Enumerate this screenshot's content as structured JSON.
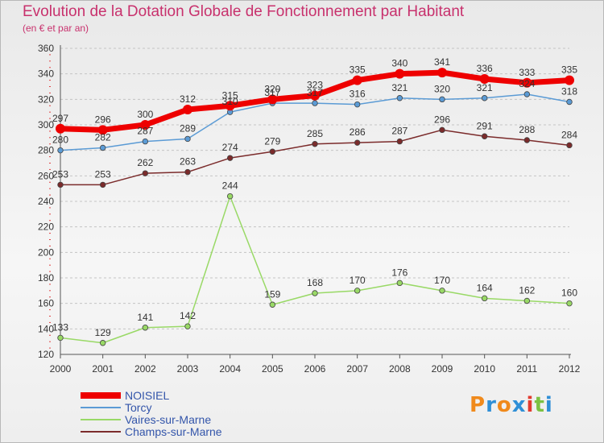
{
  "header": {
    "title": "Evolution de la Dotation Globale de Fonctionnement par Habitant",
    "subtitle": "(en € et par an)"
  },
  "brand": {
    "letters": [
      "P",
      "r",
      "o",
      "x",
      "i",
      "t",
      "i"
    ],
    "colors": [
      "#f08a1c",
      "#2f8fd6",
      "#f08a1c",
      "#2f8fd6",
      "#e23b2f",
      "#7cc142",
      "#2f8fd6"
    ]
  },
  "chart_data": {
    "type": "line",
    "title": "Evolution de la Dotation Globale de Fonctionnement par Habitant",
    "subtitle": "(en € et par an)",
    "x": [
      "2000",
      "2001",
      "2002",
      "2003",
      "2004",
      "2005",
      "2006",
      "2007",
      "2008",
      "2009",
      "2010",
      "2011",
      "2012"
    ],
    "ylim": [
      120,
      360
    ],
    "yticks": [
      120,
      140,
      160,
      180,
      200,
      220,
      240,
      260,
      280,
      300,
      320,
      340,
      360
    ],
    "grid": "horizontal dashed",
    "legend_position": "bottom-left",
    "series": [
      {
        "name": "NOISIEL",
        "color": "#ee0000",
        "values": [
          297,
          296,
          300,
          312,
          315,
          320,
          323,
          335,
          340,
          341,
          336,
          333,
          335
        ]
      },
      {
        "name": "Torcy",
        "color": "#5b9bd5",
        "values": [
          280,
          282,
          287,
          289,
          310,
          317,
          317,
          316,
          321,
          320,
          321,
          324,
          318
        ]
      },
      {
        "name": "Vaires-sur-Marne",
        "color": "#99d966",
        "values": [
          133,
          129,
          141,
          142,
          244,
          159,
          168,
          170,
          176,
          170,
          164,
          162,
          160
        ]
      },
      {
        "name": "Champs-sur-Marne",
        "color": "#7b2b2b",
        "values": [
          253,
          253,
          262,
          263,
          274,
          279,
          285,
          286,
          287,
          296,
          291,
          288,
          284
        ]
      }
    ]
  }
}
